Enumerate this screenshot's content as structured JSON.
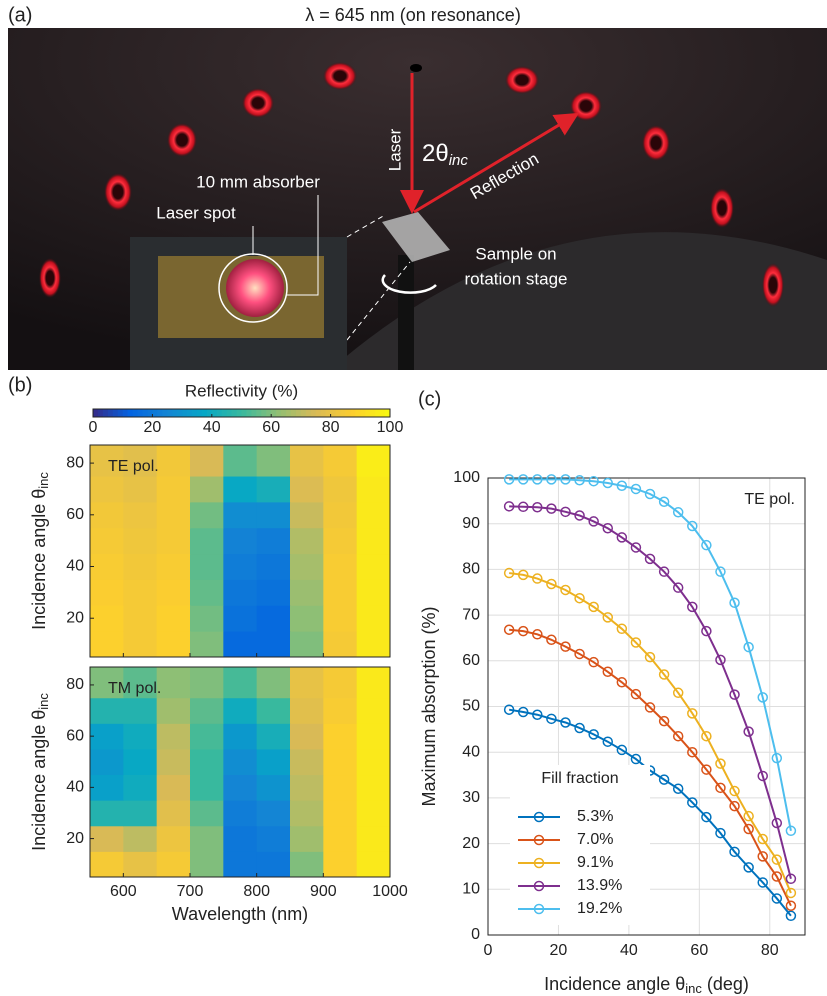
{
  "panels": [
    "(a)",
    "(b)",
    "(c)"
  ],
  "photo": {
    "title": "λ = 645 nm (on resonance)",
    "laser": "Laser",
    "angle": {
      "main": "2θ",
      "sub": "inc"
    },
    "reflection": "Reflection",
    "absorber": "10 mm absorber",
    "spot": "Laser spot",
    "sample": [
      "Sample on",
      "rotation stage"
    ]
  },
  "chart_data": [
    {
      "type": "heatmap",
      "label": "TE pol.",
      "ylabel": {
        "main": "Incidence angle θ",
        "sub": "inc"
      },
      "x": [
        575,
        625,
        675,
        725,
        775,
        825,
        875,
        925,
        975
      ],
      "y": [
        10,
        20,
        30,
        40,
        50,
        60,
        70,
        80
      ],
      "values": [
        [
          88,
          85,
          88,
          60,
          15,
          15,
          60,
          85,
          95
        ],
        [
          88,
          85,
          88,
          58,
          18,
          15,
          62,
          86,
          95
        ],
        [
          87,
          85,
          87,
          56,
          20,
          18,
          64,
          86,
          95
        ],
        [
          86,
          84,
          86,
          55,
          22,
          20,
          66,
          86,
          95
        ],
        [
          85,
          83,
          85,
          55,
          24,
          22,
          68,
          85,
          95
        ],
        [
          84,
          82,
          85,
          58,
          28,
          28,
          72,
          84,
          95
        ],
        [
          82,
          80,
          85,
          65,
          38,
          42,
          76,
          83,
          95
        ],
        [
          80,
          78,
          84,
          75,
          55,
          60,
          80,
          85,
          96
        ]
      ],
      "xlim": [
        550,
        1000
      ],
      "ylim": [
        5,
        87
      ],
      "xticks": [
        600,
        700,
        800,
        900,
        1000
      ],
      "yticks": [
        20,
        40,
        60,
        80
      ],
      "colorbar": {
        "label": "Reflectivity (%)",
        "lim": [
          0,
          100
        ],
        "ticks": [
          0,
          20,
          40,
          60,
          80,
          100
        ]
      },
      "colormap": [
        "#352a87",
        "#0363e1",
        "#1485d4",
        "#06a7c6",
        "#38b99e",
        "#92bf73",
        "#d9ba56",
        "#fcce2e",
        "#f9fb0e"
      ]
    },
    {
      "type": "heatmap",
      "label": "TM pol.",
      "ylabel": {
        "main": "Incidence angle θ",
        "sub": "inc"
      },
      "xlabel": "Wavelength (nm)",
      "x": [
        575,
        625,
        675,
        725,
        775,
        825,
        875,
        925,
        975
      ],
      "y": [
        10,
        20,
        30,
        40,
        50,
        60,
        70,
        80
      ],
      "values": [
        [
          85,
          80,
          85,
          60,
          20,
          20,
          60,
          88,
          95
        ],
        [
          75,
          70,
          82,
          60,
          20,
          22,
          65,
          88,
          95
        ],
        [
          45,
          45,
          78,
          55,
          22,
          25,
          68,
          88,
          95
        ],
        [
          35,
          40,
          75,
          50,
          25,
          30,
          70,
          88,
          95
        ],
        [
          32,
          38,
          72,
          50,
          28,
          35,
          72,
          88,
          95
        ],
        [
          35,
          40,
          70,
          52,
          32,
          42,
          75,
          88,
          95
        ],
        [
          45,
          45,
          65,
          55,
          40,
          50,
          78,
          86,
          95
        ],
        [
          60,
          55,
          62,
          60,
          52,
          60,
          80,
          85,
          95
        ]
      ],
      "xlim": [
        550,
        1000
      ],
      "ylim": [
        5,
        87
      ],
      "xticks": [
        600,
        700,
        800,
        900,
        1000
      ],
      "yticks": [
        20,
        40,
        60,
        80
      ]
    },
    {
      "type": "line",
      "label": "TE pol.",
      "xlabel": {
        "main": "Incidence angle θ",
        "sub": "inc",
        "tail": " (deg)"
      },
      "ylabel": "Maximum absorption (%)",
      "legend_title": "Fill fraction",
      "legend": "lower left",
      "grid": true,
      "x": [
        6,
        10,
        14,
        18,
        22,
        26,
        30,
        34,
        38,
        42,
        46,
        50,
        54,
        58,
        62,
        66,
        70,
        74,
        78,
        82,
        86
      ],
      "series": [
        {
          "name": "5.3%",
          "color": "#0072bd",
          "values": [
            49.3,
            48.8,
            48.2,
            47.3,
            46.5,
            45.3,
            43.9,
            42.3,
            40.5,
            38.5,
            36.0,
            34.0,
            32.0,
            29.0,
            25.8,
            22.3,
            18.2,
            14.8,
            11.5,
            8.0,
            4.2
          ]
        },
        {
          "name": "7.0%",
          "color": "#d95319",
          "values": [
            66.8,
            66.5,
            65.8,
            64.6,
            63.1,
            61.5,
            59.7,
            57.6,
            55.3,
            52.7,
            49.8,
            46.8,
            43.5,
            40.0,
            36.2,
            32.2,
            28.2,
            23.2,
            17.2,
            12.8,
            6.4
          ]
        },
        {
          "name": "9.1%",
          "color": "#edb120",
          "values": [
            79.2,
            78.8,
            78.0,
            76.8,
            75.5,
            73.7,
            71.8,
            69.5,
            67.0,
            64.0,
            60.8,
            57.0,
            53.0,
            48.5,
            43.5,
            37.5,
            31.5,
            26.0,
            21.0,
            16.5,
            9.2
          ]
        },
        {
          "name": "13.9%",
          "color": "#7e2f8e",
          "values": [
            93.8,
            93.7,
            93.6,
            93.3,
            92.6,
            91.8,
            90.5,
            89.0,
            87.0,
            84.8,
            82.3,
            79.5,
            76.0,
            71.8,
            66.5,
            60.2,
            52.6,
            44.5,
            34.8,
            24.5,
            12.3
          ]
        },
        {
          "name": "19.2%",
          "color": "#4dbeee",
          "values": [
            99.7,
            99.7,
            99.7,
            99.7,
            99.7,
            99.5,
            99.3,
            98.9,
            98.3,
            97.6,
            96.5,
            94.8,
            92.5,
            89.5,
            85.3,
            79.5,
            72.7,
            63.0,
            52.0,
            38.7,
            22.8
          ]
        }
      ],
      "xlim": [
        0,
        90
      ],
      "ylim": [
        0,
        100
      ],
      "xticks": [
        0,
        20,
        40,
        60,
        80
      ],
      "yticks": [
        0,
        10,
        20,
        30,
        40,
        50,
        60,
        70,
        80,
        90,
        100
      ]
    }
  ]
}
